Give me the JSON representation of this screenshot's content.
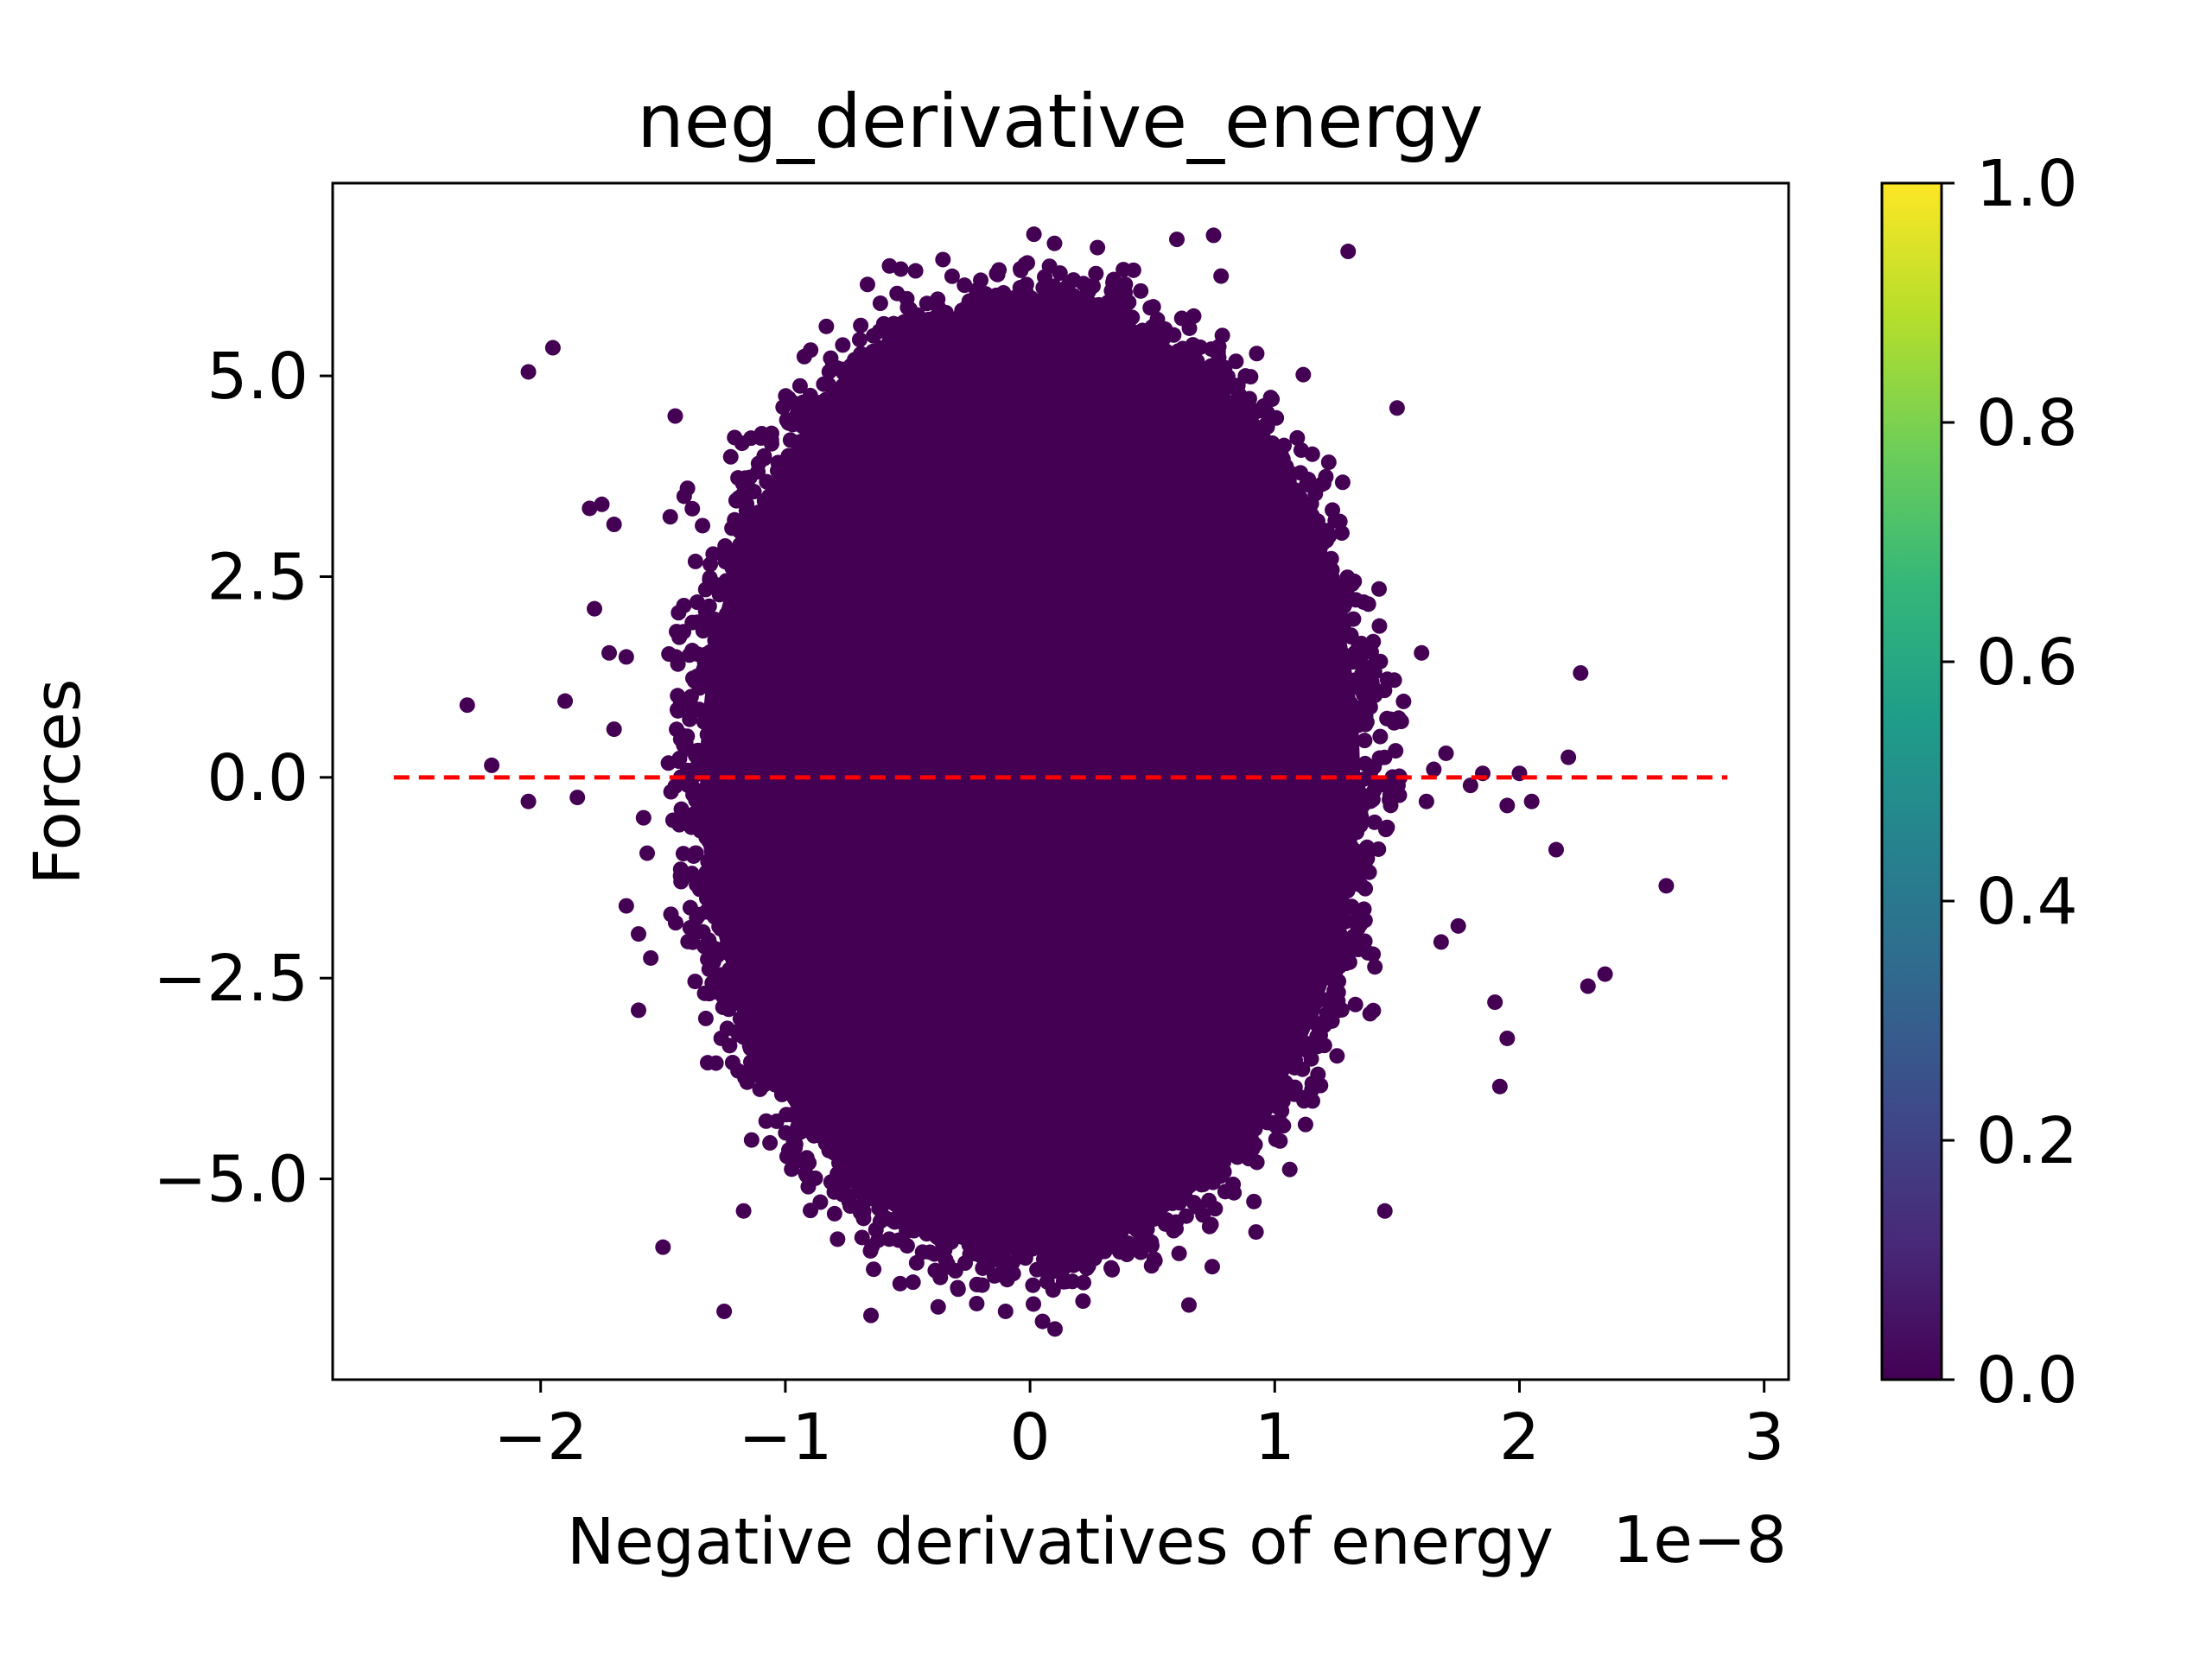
{
  "chart_data": {
    "type": "scatter",
    "title": "neg_derivative_energy",
    "xlabel": "Negative derivatives of energy",
    "ylabel": "Forces",
    "x_offset_label": "1e−8",
    "x_scale": 1e-08,
    "xlim": [
      -2.85,
      3.1
    ],
    "ylim": [
      -7.5,
      7.4
    ],
    "x_ticks": [
      -2,
      -1,
      0,
      1,
      2,
      3
    ],
    "x_tick_labels": [
      "−2",
      "−1",
      "0",
      "1",
      "2",
      "3"
    ],
    "y_ticks": [
      -5.0,
      -2.5,
      0.0,
      2.5,
      5.0
    ],
    "y_tick_labels": [
      "−5.0",
      "−2.5",
      "0.0",
      "2.5",
      "5.0"
    ],
    "grid": false,
    "marker_color": "#440154",
    "reference_line": {
      "y": 0.0,
      "x_range": [
        -2.6,
        2.85
      ],
      "color": "#ff0000",
      "style": "dashed"
    },
    "cluster": {
      "center_x": 0.0,
      "center_y": 0.0,
      "half_width_x": 1.45,
      "half_height_y": 6.4
    },
    "outlier_points": [
      [
        -2.3,
        0.9
      ],
      [
        -2.2,
        0.15
      ],
      [
        -2.05,
        -0.3
      ],
      [
        -2.05,
        5.05
      ],
      [
        -1.95,
        5.35
      ],
      [
        -1.9,
        0.95
      ],
      [
        -1.85,
        -0.25
      ],
      [
        -1.8,
        3.35
      ],
      [
        -1.75,
        3.4
      ],
      [
        -1.7,
        3.15
      ],
      [
        -1.72,
        1.55
      ],
      [
        -1.65,
        1.5
      ],
      [
        -1.78,
        2.1
      ],
      [
        -1.7,
        0.6
      ],
      [
        -1.65,
        -1.6
      ],
      [
        -1.6,
        -1.95
      ],
      [
        -1.6,
        -2.9
      ],
      [
        -1.55,
        -2.25
      ],
      [
        -1.5,
        -5.85
      ],
      [
        -1.45,
        4.5
      ],
      [
        -1.4,
        3.6
      ],
      [
        1.6,
        1.55
      ],
      [
        1.62,
        -0.3
      ],
      [
        1.65,
        0.1
      ],
      [
        1.68,
        -2.05
      ],
      [
        1.7,
        0.3
      ],
      [
        1.75,
        -1.85
      ],
      [
        1.8,
        -0.1
      ],
      [
        1.85,
        0.05
      ],
      [
        1.9,
        -2.8
      ],
      [
        1.92,
        -3.85
      ],
      [
        1.95,
        -3.25
      ],
      [
        1.95,
        -0.35
      ],
      [
        2.0,
        0.05
      ],
      [
        2.05,
        -0.3
      ],
      [
        2.15,
        -0.9
      ],
      [
        2.2,
        0.25
      ],
      [
        2.25,
        1.3
      ],
      [
        2.28,
        -2.6
      ],
      [
        2.35,
        -2.45
      ],
      [
        2.6,
        -1.35
      ],
      [
        1.5,
        4.6
      ],
      [
        1.45,
        -5.4
      ],
      [
        1.3,
        6.55
      ],
      [
        0.75,
        6.75
      ],
      [
        0.6,
        6.7
      ],
      [
        0.1,
        6.65
      ],
      [
        -0.65,
        -6.7
      ],
      [
        -1.25,
        -6.65
      ],
      [
        -0.1,
        -6.65
      ]
    ],
    "colorbar": {
      "colormap": "viridis",
      "range": [
        0.0,
        1.0
      ],
      "ticks": [
        0.0,
        0.2,
        0.4,
        0.6,
        0.8,
        1.0
      ],
      "tick_labels": [
        "0.0",
        "0.2",
        "0.4",
        "0.6",
        "0.8",
        "1.0"
      ],
      "stops": [
        "#440154",
        "#482878",
        "#3e4989",
        "#31688e",
        "#26828e",
        "#1f9e89",
        "#35b779",
        "#6ece58",
        "#b5de2b",
        "#fde725"
      ]
    }
  }
}
